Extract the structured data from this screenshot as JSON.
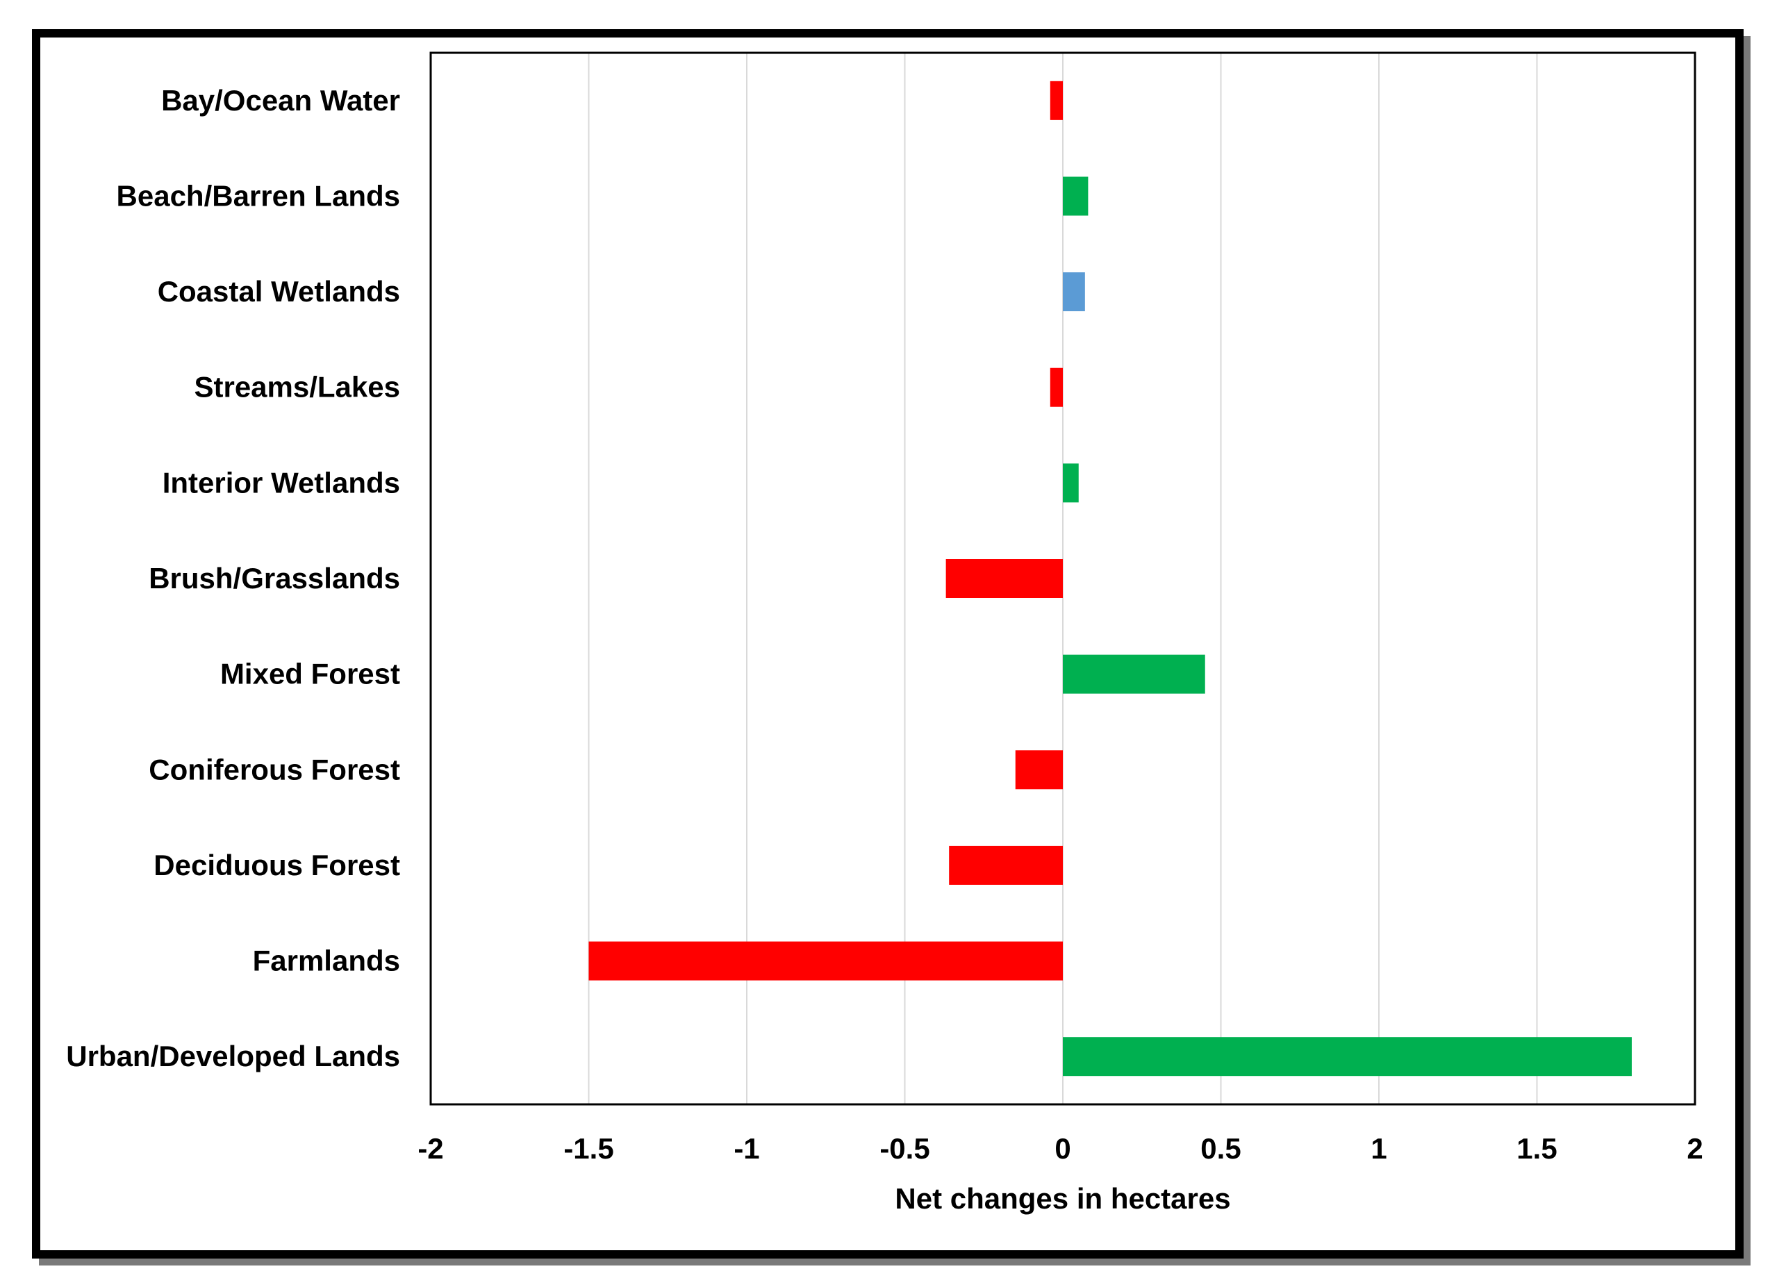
{
  "chart_data": {
    "type": "bar",
    "orientation": "horizontal",
    "title": "",
    "xlabel": "Net changes in hectares",
    "ylabel": "",
    "xlim": [
      -2,
      2
    ],
    "xticks": [
      -2,
      -1.5,
      -1,
      -0.5,
      0,
      0.5,
      1,
      1.5,
      2
    ],
    "xtick_labels": [
      "-2",
      "-1.5",
      "-1",
      "-0.5",
      "0",
      "0.5",
      "1",
      "1.5",
      "2"
    ],
    "grid": "vertical",
    "legend": "none",
    "categories": [
      "Bay/Ocean Water",
      "Beach/Barren Lands",
      "Coastal Wetlands",
      "Streams/Lakes",
      "Interior Wetlands",
      "Brush/Grasslands",
      "Mixed Forest",
      "Coniferous Forest",
      "Deciduous Forest",
      "Farmlands",
      "Urban/Developed Lands"
    ],
    "values": [
      -0.04,
      0.08,
      0.07,
      -0.04,
      0.05,
      -0.37,
      0.45,
      -0.15,
      -0.36,
      -1.5,
      1.8
    ],
    "colors": [
      "#ff0000",
      "#00b050",
      "#5b9bd5",
      "#ff0000",
      "#00b050",
      "#ff0000",
      "#00b050",
      "#ff0000",
      "#ff0000",
      "#ff0000",
      "#00b050"
    ]
  }
}
